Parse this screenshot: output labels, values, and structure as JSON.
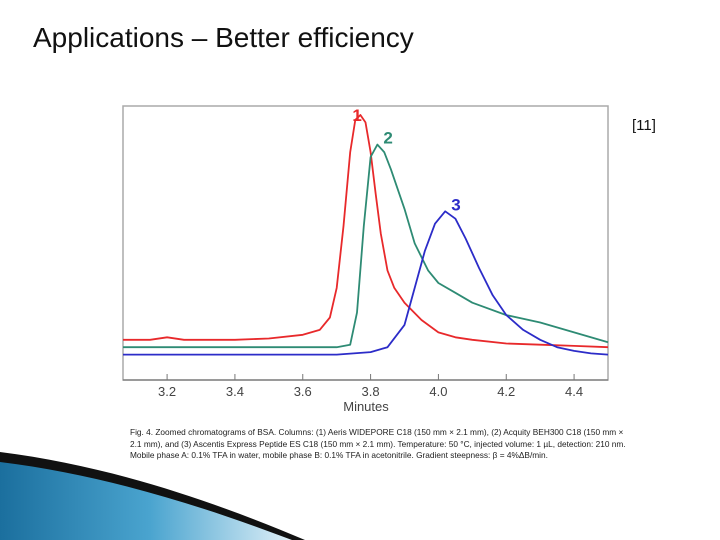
{
  "slide": {
    "title": "Applications – Better efficiency",
    "reference": "[11]",
    "caption": "Fig. 4. Zoomed chromatograms of BSA. Columns: (1) Aeris WIDEPORE C18 (150 mm × 2.1 mm), (2) Acquity BEH300 C18 (150 mm × 2.1 mm), and (3) Ascentis Express Peptide ES C18 (150 mm × 2.1 mm). Temperature: 50 °C, injected volume: 1 µL, detection: 210 nm. Mobile phase A: 0.1% TFA in water, mobile phase B: 0.1% TFA in acetonitrile. Gradient steepness: β = 4%ΔB/min."
  },
  "chart_data": {
    "type": "line",
    "title": "",
    "xlabel": "Minutes",
    "ylabel": "",
    "xlim": [
      3.07,
      4.5
    ],
    "ylim": [
      0,
      1
    ],
    "xticks": [
      3.2,
      3.4,
      3.6,
      3.8,
      4.0,
      4.2,
      4.4
    ],
    "xtick_labels": [
      "3.2",
      "3.4",
      "3.6",
      "3.8",
      "4.0",
      "4.2",
      "4.4"
    ],
    "grid": false,
    "series": [
      {
        "peak_label": "1",
        "color": "#e8292b",
        "x": [
          3.07,
          3.15,
          3.2,
          3.25,
          3.3,
          3.4,
          3.5,
          3.6,
          3.65,
          3.68,
          3.7,
          3.72,
          3.74,
          3.755,
          3.77,
          3.785,
          3.8,
          3.815,
          3.83,
          3.85,
          3.87,
          3.9,
          3.95,
          4.0,
          4.05,
          4.1,
          4.2,
          4.3,
          4.4,
          4.5
        ],
        "y": [
          0.09,
          0.09,
          0.1,
          0.09,
          0.09,
          0.09,
          0.095,
          0.11,
          0.13,
          0.18,
          0.3,
          0.55,
          0.85,
          0.98,
          1.0,
          0.97,
          0.85,
          0.68,
          0.52,
          0.37,
          0.3,
          0.24,
          0.17,
          0.12,
          0.1,
          0.09,
          0.075,
          0.07,
          0.065,
          0.06
        ]
      },
      {
        "peak_label": "2",
        "color": "#2e8b74",
        "x": [
          3.07,
          3.2,
          3.3,
          3.4,
          3.5,
          3.6,
          3.7,
          3.74,
          3.76,
          3.78,
          3.8,
          3.82,
          3.84,
          3.86,
          3.9,
          3.93,
          3.97,
          4.0,
          4.05,
          4.1,
          4.2,
          4.3,
          4.4,
          4.5
        ],
        "y": [
          0.06,
          0.06,
          0.06,
          0.06,
          0.06,
          0.06,
          0.06,
          0.07,
          0.2,
          0.55,
          0.83,
          0.88,
          0.85,
          0.78,
          0.62,
          0.48,
          0.37,
          0.32,
          0.28,
          0.24,
          0.19,
          0.16,
          0.12,
          0.08
        ]
      },
      {
        "peak_label": "3",
        "color": "#2c2cc8",
        "x": [
          3.07,
          3.3,
          3.5,
          3.7,
          3.8,
          3.85,
          3.9,
          3.93,
          3.96,
          3.99,
          4.02,
          4.05,
          4.08,
          4.12,
          4.16,
          4.2,
          4.25,
          4.3,
          4.35,
          4.4,
          4.45,
          4.5
        ],
        "y": [
          0.03,
          0.03,
          0.03,
          0.03,
          0.04,
          0.06,
          0.15,
          0.3,
          0.45,
          0.56,
          0.61,
          0.58,
          0.5,
          0.38,
          0.27,
          0.19,
          0.13,
          0.09,
          0.06,
          0.045,
          0.035,
          0.03
        ]
      }
    ]
  }
}
